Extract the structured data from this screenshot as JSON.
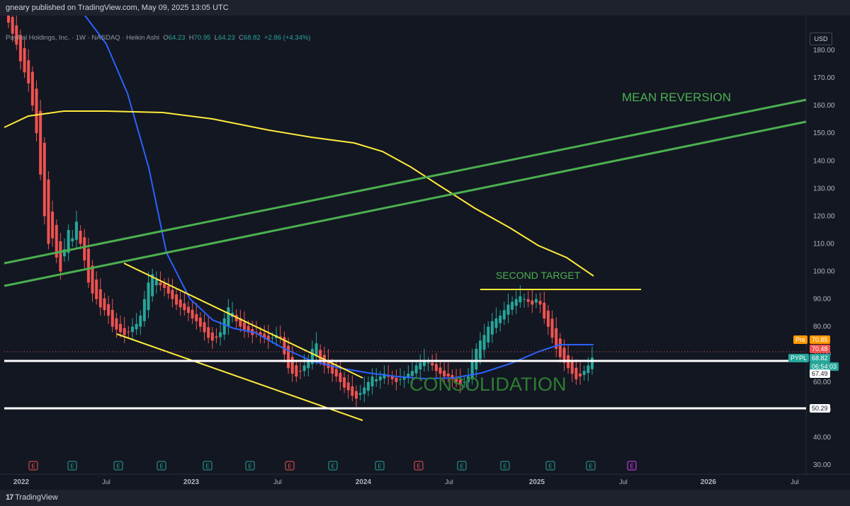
{
  "header": {
    "published": "gneary published on TradingView.com, May 09, 2025 13:05 UTC"
  },
  "symbol": {
    "name": "PayPal Holdings, Inc. · 1W · NASDAQ · Heikin Ashi",
    "o_label": "O",
    "o": "64.23",
    "h_label": "H",
    "h": "70.95",
    "l_label": "L",
    "l": "64.23",
    "c_label": "C",
    "c": "68.82",
    "change": "+2.86 (+4.34%)",
    "currency": "USD"
  },
  "footer": {
    "brand": "TradingView"
  },
  "colors": {
    "bull": "#26a69a",
    "bear": "#ef5350",
    "ma_fast": "#2962ff",
    "ma_slow": "#ffeb3b",
    "trend": "#4caf50",
    "channel": "#ffeb3b",
    "level": "#ffffff",
    "annotation": "#4caf50"
  },
  "chart_data": {
    "type": "candlestick",
    "y_scale": "linear",
    "ylim": [
      28,
      187
    ],
    "y_ticks": [
      "30.00",
      "40.00",
      "50.00",
      "60.00",
      "70.00",
      "80.00",
      "90.00",
      "100.00",
      "110.00",
      "120.00",
      "130.00",
      "140.00",
      "150.00",
      "160.00",
      "170.00",
      "180.00"
    ],
    "x_ticks": [
      "2022",
      "Jul",
      "2023",
      "Jul",
      "2024",
      "Jul",
      "2025",
      "Jul",
      "2026",
      "Jul"
    ],
    "price_labels": [
      {
        "label": "Pre",
        "value": "70.85",
        "color": "#ff9800"
      },
      {
        "label": "",
        "value": "70.48",
        "color": "#ef5350"
      },
      {
        "label": "PYPL",
        "value": "68.82",
        "sub": "06:54:03",
        "color": "#26a69a"
      },
      {
        "label": "",
        "value": "67.49",
        "color": "#ffffff"
      },
      {
        "label": "",
        "value": "50.29",
        "color": "#ffffff"
      }
    ],
    "annotations": [
      {
        "text": "MEAN REVERSION"
      },
      {
        "text": "SECOND TARGET"
      },
      {
        "text": "CONSOLIDATION"
      }
    ],
    "earnings_markers": [
      "E",
      "E",
      "E",
      "E",
      "E",
      "E",
      "E",
      "E",
      "E",
      "E",
      "E",
      "E",
      "E",
      "E"
    ],
    "candles_close": [
      190,
      186,
      182,
      176,
      172,
      168,
      160,
      150,
      135,
      120,
      110,
      112,
      105,
      100,
      108,
      115,
      112,
      118,
      110,
      104,
      96,
      92,
      90,
      87,
      86,
      84,
      80,
      79,
      78,
      77,
      78,
      80,
      81,
      84,
      90,
      96,
      99,
      97,
      95,
      94,
      92,
      90,
      88,
      87,
      86,
      85,
      83,
      82,
      80,
      78,
      76,
      75,
      76,
      78,
      83,
      87,
      85,
      82,
      80,
      79,
      78,
      77,
      78,
      77,
      76,
      75,
      76,
      77,
      76,
      70,
      65,
      63,
      62,
      64,
      66,
      68,
      72,
      74,
      68,
      66,
      65,
      63,
      62,
      60,
      58,
      57,
      55,
      54,
      56,
      58,
      60,
      62,
      61,
      62,
      63,
      62,
      61,
      60,
      61,
      62,
      63,
      64,
      66,
      67,
      68,
      67,
      66,
      64,
      63,
      62,
      62,
      61,
      60,
      59,
      60,
      62,
      68,
      72,
      75,
      77,
      80,
      82,
      83,
      84,
      86,
      88,
      89,
      90,
      91,
      90,
      89,
      88,
      90,
      88,
      83,
      80,
      76,
      72,
      69,
      67,
      65,
      63,
      61,
      62,
      64,
      66,
      68.82
    ]
  }
}
